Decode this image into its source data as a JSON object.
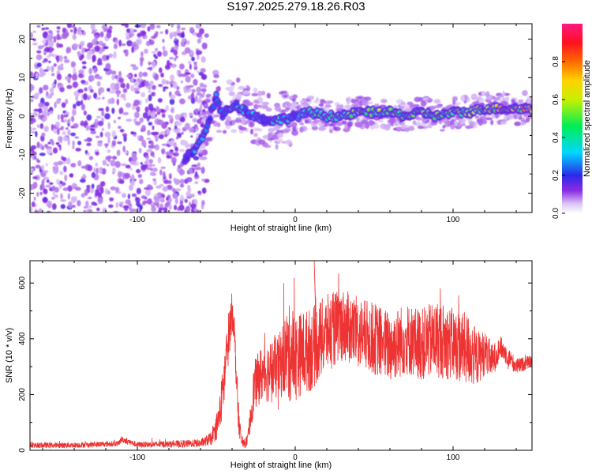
{
  "title": "S197.2025.279.18.26.R03",
  "colors": {
    "snr_line": "#ee3333",
    "axis": "#000000",
    "background": "#ffffff"
  },
  "chart_data": [
    {
      "type": "heatmap",
      "xlabel": "Height of straight line (km)",
      "ylabel": "Frequency (Hz)",
      "xlim": [
        -168,
        150
      ],
      "ylim": [
        -25,
        24
      ],
      "x_ticks": [
        -100,
        0,
        100
      ],
      "y_ticks": [
        -20,
        -10,
        0,
        10,
        20
      ],
      "colorbar": {
        "label": "Normalized spectral amplitude",
        "range": [
          0,
          1
        ],
        "ticks": [
          "0.0",
          "0.2",
          "0.4",
          "0.6",
          "0.8"
        ],
        "colormap": "rainbow: white-violet-blue-cyan-green-yellow-orange-red-magenta"
      },
      "ridge": {
        "description": "dominant frequency track (Hz) vs height (km)",
        "x": [
          -70,
          -64,
          -58,
          -54,
          -50,
          -46,
          -42,
          -38,
          -30,
          -20,
          -10,
          0,
          10,
          20,
          30,
          40,
          50,
          60,
          70,
          80,
          90,
          100,
          110,
          120,
          130,
          140,
          150
        ],
        "y": [
          -11,
          -9,
          -5,
          0,
          5,
          0,
          2,
          3,
          1,
          -1,
          -1,
          0,
          1,
          0,
          0,
          1,
          1,
          1,
          0,
          1,
          0,
          1,
          1,
          2,
          2,
          2,
          2
        ],
        "amplitude": [
          0.25,
          0.3,
          0.3,
          0.35,
          0.3,
          0.25,
          0.4,
          0.4,
          0.35,
          0.3,
          0.4,
          0.3,
          0.45,
          0.5,
          0.55,
          0.6,
          0.65,
          0.7,
          0.6,
          0.65,
          0.6,
          0.65,
          0.6,
          0.7,
          0.8,
          0.85,
          0.9
        ]
      },
      "noise_region": {
        "x_from": -168,
        "x_to": -62,
        "amplitude": 0.08
      }
    },
    {
      "type": "line",
      "xlabel": "Height of straight line (km)",
      "ylabel": "SNR (10 * v/v)",
      "xlim": [
        -168,
        150
      ],
      "ylim": [
        0,
        680
      ],
      "x_ticks": [
        -100,
        0,
        100
      ],
      "y_ticks": [
        0,
        200,
        400,
        600
      ],
      "series": [
        {
          "name": "SNR",
          "x": [
            -168,
            -150,
            -130,
            -112,
            -110,
            -100,
            -80,
            -60,
            -52,
            -48,
            -45,
            -42,
            -40,
            -39,
            -36,
            -34,
            -32,
            -30,
            -26,
            -22,
            -18,
            -14,
            -10,
            -6,
            -4,
            -2,
            0,
            4,
            10,
            20,
            30,
            40,
            50,
            60,
            70,
            80,
            90,
            100,
            110,
            115,
            120,
            125,
            130,
            140,
            150
          ],
          "center": [
            18,
            18,
            20,
            24,
            40,
            20,
            22,
            25,
            45,
            120,
            250,
            420,
            500,
            470,
            120,
            30,
            25,
            35,
            230,
            270,
            280,
            290,
            300,
            350,
            340,
            360,
            330,
            350,
            360,
            420,
            450,
            420,
            400,
            370,
            400,
            380,
            400,
            380,
            360,
            330,
            350,
            320,
            370,
            300,
            320
          ],
          "spread": [
            10,
            10,
            10,
            10,
            12,
            10,
            12,
            15,
            25,
            70,
            100,
            90,
            70,
            70,
            60,
            15,
            15,
            25,
            90,
            100,
            110,
            110,
            120,
            150,
            180,
            170,
            160,
            150,
            150,
            140,
            130,
            130,
            130,
            130,
            130,
            130,
            140,
            130,
            130,
            100,
            80,
            60,
            40,
            30,
            20
          ]
        }
      ],
      "peak_annotation": {
        "x": 12,
        "y": 685
      }
    }
  ]
}
